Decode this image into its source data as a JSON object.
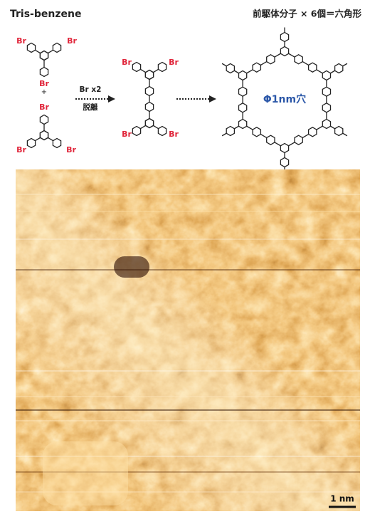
{
  "header": {
    "left_title": "Tris-benzene",
    "right_title": "前駆体分子 × 6個＝六角形"
  },
  "precursor_top": {
    "labels": [
      "Br",
      "Br",
      "Br"
    ]
  },
  "plus": "+",
  "precursor_bottom": {
    "labels": [
      "Br",
      "Br",
      "Br"
    ]
  },
  "step1": {
    "line1": "Br x2",
    "line2": "脱離"
  },
  "dimer": {
    "labels": [
      "Br",
      "Br",
      "Br",
      "Br"
    ]
  },
  "product": {
    "label": "Φ1nm穴"
  },
  "image": {
    "scale_bar": "1 nm"
  }
}
